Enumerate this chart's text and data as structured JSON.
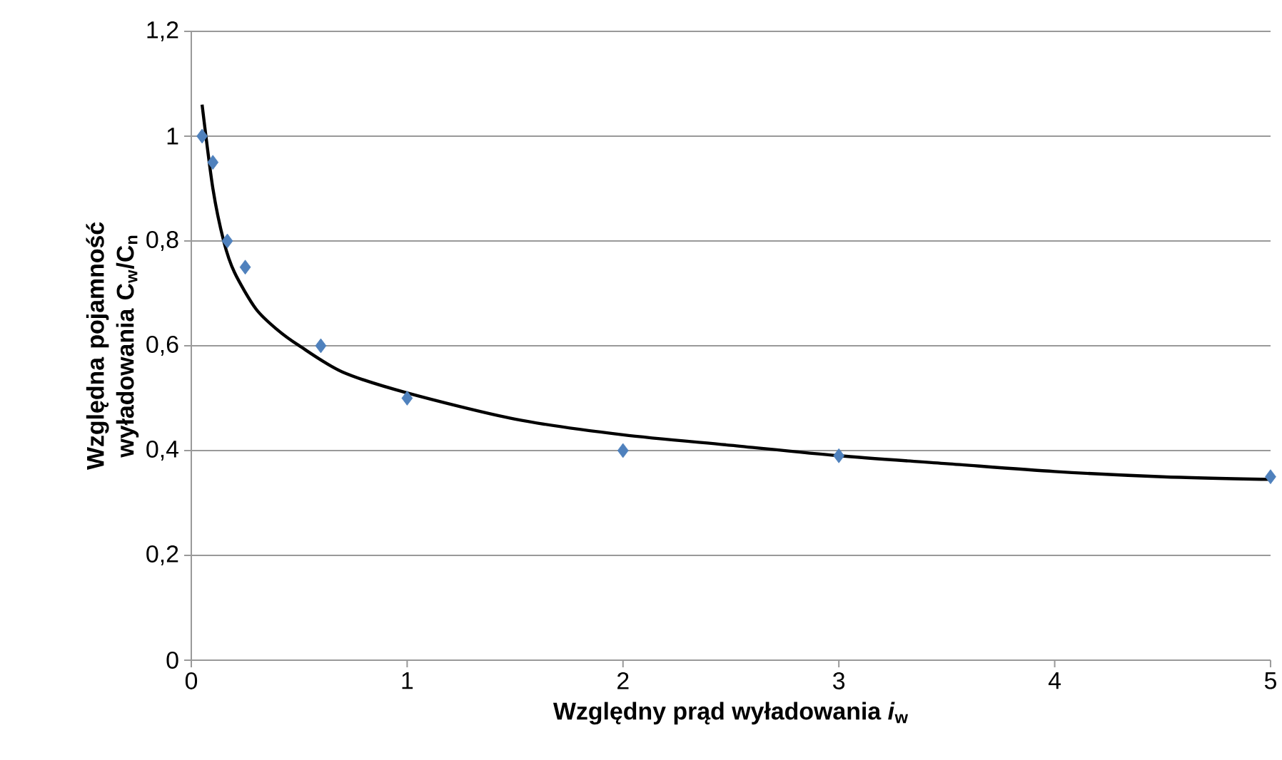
{
  "chart_data": {
    "type": "scatter",
    "xlabel": "Względny prąd wyładowania *i*$_{w}$",
    "ylabel": "Względna pojamność wyładowania C$_{w}$/C$_{n}$",
    "series": [
      {
        "marker": "diamond",
        "color": "#4f81bd",
        "x": [
          0.05,
          0.1,
          0.167,
          0.25,
          0.6,
          1,
          2,
          3,
          5
        ],
        "values": [
          1.0,
          0.95,
          0.8,
          0.75,
          0.6,
          0.5,
          0.4,
          0.39,
          0.35
        ]
      },
      {
        "type": "line",
        "marker": "none",
        "color": "#000000",
        "x": [
          0.05,
          0.1,
          0.15,
          0.2,
          0.3,
          0.4,
          0.5,
          0.7,
          1,
          1.5,
          2,
          2.5,
          3,
          3.5,
          4,
          4.5,
          5
        ],
        "values": [
          1.06,
          0.9,
          0.8,
          0.74,
          0.67,
          0.63,
          0.6,
          0.55,
          0.51,
          0.46,
          0.43,
          0.41,
          0.39,
          0.375,
          0.36,
          0.35,
          0.345
        ]
      }
    ],
    "xlim": [
      0,
      5
    ],
    "xticks": [
      0,
      1,
      2,
      3,
      4,
      5
    ],
    "ylim": [
      0,
      1.2
    ],
    "yticks": [
      0,
      {
        "value": 0.2,
        "label": "0,2"
      },
      {
        "value": 0.4,
        "label": "0,4"
      },
      {
        "value": 0.6,
        "label": "0,6"
      },
      {
        "value": 0.8,
        "label": "0,8"
      },
      1,
      {
        "value": 1.2,
        "label": "1,2"
      }
    ],
    "grid": "y",
    "line_style": "solid"
  }
}
